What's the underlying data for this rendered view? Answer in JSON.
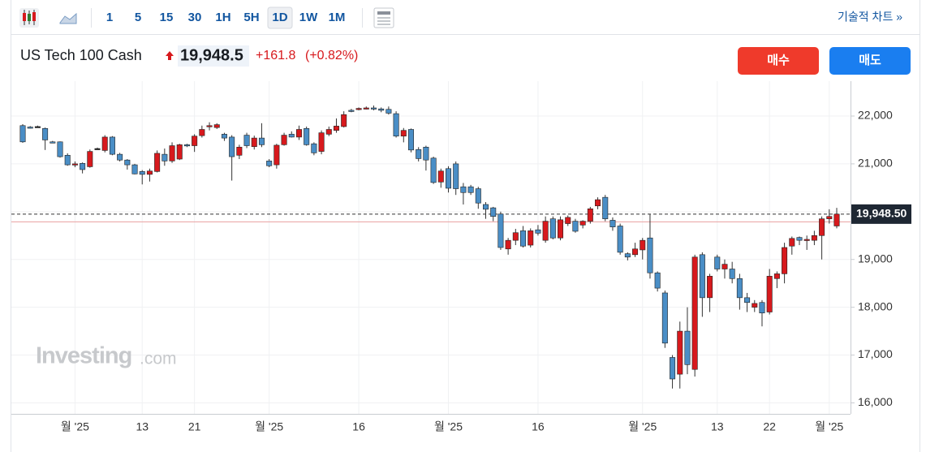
{
  "toolbar": {
    "intervals": [
      "1",
      "5",
      "15",
      "30",
      "1H",
      "5H",
      "1D",
      "1W",
      "1M"
    ],
    "active_index": 6,
    "link": "기술적 차트 »"
  },
  "header": {
    "title": "US Tech 100 Cash",
    "price": "19,948.5",
    "change": "+161.8",
    "change_pct": "(+0.82%)",
    "buy": "매수",
    "sell": "매도"
  },
  "watermark": {
    "brand": "Investing",
    "suffix": ".com"
  },
  "chart_data": {
    "type": "candlestick",
    "categories": [
      null,
      null,
      null,
      null,
      null,
      null,
      null,
      "월 '25",
      null,
      null,
      null,
      null,
      null,
      null,
      null,
      null,
      "13",
      null,
      null,
      null,
      null,
      null,
      null,
      "21",
      null,
      null,
      null,
      null,
      null,
      null,
      null,
      null,
      null,
      "월 '25",
      null,
      null,
      null,
      null,
      null,
      null,
      null,
      null,
      null,
      null,
      null,
      "16",
      null,
      null,
      null,
      null,
      null,
      null,
      null,
      null,
      null,
      null,
      null,
      "월 '25",
      null,
      null,
      null,
      null,
      null,
      null,
      null,
      null,
      null,
      null,
      null,
      "16",
      null,
      null,
      null,
      null,
      null,
      null,
      null,
      null,
      null,
      null,
      null,
      null,
      null,
      "월 '25",
      null,
      null,
      null,
      null,
      null,
      null,
      null,
      null,
      null,
      "13",
      null,
      null,
      null,
      null,
      null,
      null,
      "22",
      null,
      null,
      null,
      null,
      null,
      null,
      null,
      "월 '25",
      null
    ],
    "open": [
      21800,
      21770,
      21780,
      21740,
      21460,
      21460,
      21180,
      20990,
      21010,
      20940,
      21320,
      21280,
      21560,
      21200,
      21080,
      20980,
      20840,
      20780,
      20840,
      21200,
      21060,
      21100,
      21400,
      21380,
      21590,
      21780,
      21760,
      21620,
      21560,
      21180,
      21600,
      21360,
      21540,
      21060,
      20980,
      21400,
      21620,
      21560,
      21740,
      21420,
      21260,
      21620,
      21700,
      21780,
      22120,
      22150,
      22160,
      22170,
      22150,
      22140,
      22050,
      21580,
      21720,
      21300,
      21350,
      21120,
      20620,
      20900,
      21000,
      20520,
      20520,
      20480,
      20150,
      20080,
      19950,
      19220,
      19400,
      19600,
      19300,
      19620,
      19400,
      19850,
      19450,
      19750,
      19800,
      19720,
      19800,
      20120,
      20300,
      19820,
      19700,
      19120,
      19100,
      19200,
      19450,
      18720,
      18300,
      16950,
      16600,
      17500,
      16700,
      19100,
      18200,
      19050,
      18800,
      18800,
      18600,
      18200,
      18000,
      18100,
      17900,
      18600,
      18700,
      19280,
      19460,
      19400,
      19400,
      19500,
      19850,
      19700
    ],
    "high": [
      21830,
      21790,
      21800,
      21760,
      21480,
      21470,
      21220,
      21050,
      21030,
      21300,
      21340,
      21600,
      21580,
      21230,
      21100,
      21000,
      20870,
      20900,
      21280,
      21320,
      21450,
      21420,
      21420,
      21620,
      21800,
      21870,
      21850,
      21650,
      21600,
      21400,
      21650,
      21590,
      21850,
      21100,
      21420,
      21650,
      21680,
      21800,
      21780,
      21450,
      21700,
      21780,
      21950,
      22100,
      22150,
      22180,
      22200,
      22220,
      22180,
      22200,
      22100,
      21750,
      21740,
      21350,
      21380,
      21150,
      20900,
      20950,
      21050,
      20600,
      20560,
      20520,
      20200,
      20100,
      20000,
      19450,
      19640,
      19700,
      19650,
      19720,
      19900,
      19900,
      19900,
      19920,
      19850,
      19820,
      20100,
      20300,
      20350,
      19880,
      19750,
      19150,
      19350,
      19450,
      19950,
      18750,
      18350,
      17000,
      17700,
      18000,
      19100,
      19150,
      18700,
      19100,
      19000,
      18950,
      18700,
      18300,
      18150,
      18150,
      18800,
      18750,
      19350,
      19480,
      19480,
      19500,
      19600,
      19900,
      20050,
      20080
    ],
    "low": [
      21440,
      21740,
      21760,
      21290,
      21440,
      21130,
      20960,
      20930,
      20800,
      20920,
      21300,
      21240,
      21180,
      21050,
      20880,
      20780,
      20570,
      20630,
      20820,
      20960,
      21020,
      21080,
      21350,
      21250,
      21550,
      21700,
      21730,
      21480,
      20650,
      21100,
      21330,
      21300,
      21350,
      20930,
      20900,
      21380,
      21550,
      21500,
      21380,
      21180,
      21200,
      21580,
      21650,
      21760,
      22080,
      22120,
      22140,
      22120,
      22080,
      22030,
      21550,
      21450,
      21240,
      21050,
      20860,
      20580,
      20500,
      20400,
      20350,
      20150,
      20350,
      20060,
      19850,
      19800,
      19200,
      19100,
      19300,
      19250,
      19250,
      19500,
      19350,
      19420,
      19400,
      19700,
      19560,
      19650,
      19750,
      20050,
      19800,
      19600,
      19100,
      18980,
      19050,
      19000,
      18600,
      18330,
      17150,
      16300,
      16300,
      16600,
      16550,
      17800,
      17900,
      18750,
      18600,
      18500,
      17950,
      17900,
      17900,
      17600,
      17850,
      18400,
      18500,
      19100,
      19300,
      19200,
      19300,
      19000,
      19750,
      19650
    ],
    "close": [
      21460,
      21760,
      21780,
      21500,
      21450,
      21150,
      20980,
      21000,
      20880,
      21260,
      21320,
      21560,
      21200,
      21080,
      20980,
      20790,
      20780,
      20850,
      21220,
      21060,
      21380,
      21400,
      21380,
      21580,
      21720,
      21800,
      21820,
      21540,
      21150,
      21350,
      21380,
      21540,
      21400,
      20960,
      21390,
      21600,
      21560,
      21720,
      21400,
      21230,
      21650,
      21720,
      21790,
      22030,
      22110,
      22160,
      22170,
      22150,
      22120,
      22060,
      21580,
      21700,
      21290,
      21110,
      21080,
      20610,
      20850,
      20490,
      20480,
      20400,
      20400,
      20180,
      20050,
      19900,
      19250,
      19400,
      19560,
      19280,
      19600,
      19550,
      19800,
      19450,
      19830,
      19880,
      19590,
      19800,
      20060,
      20250,
      19850,
      19680,
      19150,
      19050,
      19220,
      19400,
      18720,
      18400,
      17250,
      16500,
      17500,
      16800,
      19050,
      18200,
      18650,
      18800,
      18900,
      18600,
      18200,
      18100,
      18080,
      17880,
      18650,
      18700,
      19250,
      19440,
      19400,
      19420,
      19500,
      19850,
      19900,
      19948.5
    ],
    "up_color": "#d7191d",
    "down_color": "#4a8ec6",
    "ylim": [
      15770,
      22730
    ],
    "yticks": [
      {
        "value": 16000,
        "label": "16,000"
      },
      {
        "value": 17000,
        "label": "17,000"
      },
      {
        "value": 18000,
        "label": "18,000"
      },
      {
        "value": 19000,
        "label": "19,000"
      },
      {
        "value": 20000,
        "label": "20,000"
      },
      {
        "value": 21000,
        "label": "21,000"
      },
      {
        "value": 22000,
        "label": "22,000"
      }
    ],
    "last_price": {
      "value": 19948.5,
      "label": "19,948.50"
    },
    "previous_close": 19786.7,
    "grid": true
  }
}
